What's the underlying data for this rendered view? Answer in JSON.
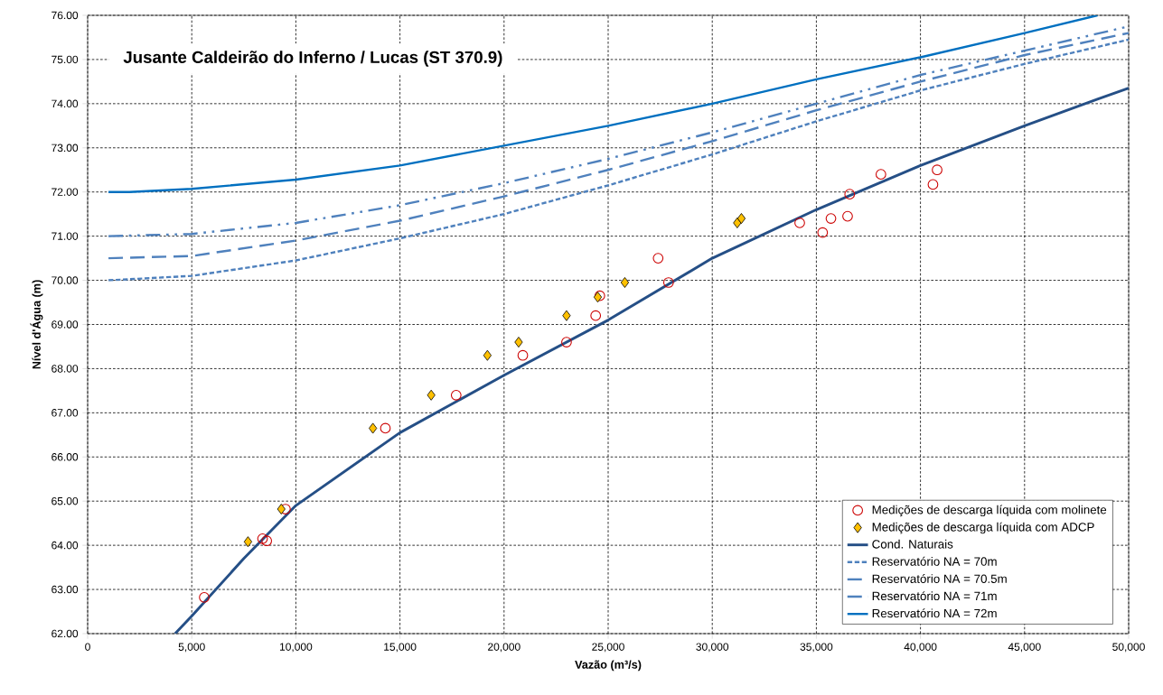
{
  "chart_data": {
    "type": "line",
    "title": "Jusante Caldeirão do Inferno / Lucas (ST 370.9)",
    "xlabel": "Vazão (m³/s)",
    "ylabel": "Nível d'Água (m)",
    "xlim": [
      0,
      50000
    ],
    "ylim": [
      62,
      76
    ],
    "xticks": [
      0,
      {
        "value": 5000,
        "label": "5,000"
      },
      {
        "value": 10000,
        "label": "10,000"
      },
      {
        "value": 15000,
        "label": "15,000"
      },
      {
        "value": 20000,
        "label": "20,000"
      },
      {
        "value": 25000,
        "label": "25,000"
      },
      {
        "value": 30000,
        "label": "30,000"
      },
      {
        "value": 35000,
        "label": "35,000"
      },
      {
        "value": 40000,
        "label": "40,000"
      },
      {
        "value": 45000,
        "label": "45,000"
      },
      {
        "value": 50000,
        "label": "50,000"
      }
    ],
    "yticks": [
      {
        "value": 62,
        "label": "62.00"
      },
      {
        "value": 63,
        "label": "63.00"
      },
      {
        "value": 64,
        "label": "64.00"
      },
      {
        "value": 65,
        "label": "65.00"
      },
      {
        "value": 66,
        "label": "66.00"
      },
      {
        "value": 67,
        "label": "67.00"
      },
      {
        "value": 68,
        "label": "68.00"
      },
      {
        "value": 69,
        "label": "69.00"
      },
      {
        "value": 70,
        "label": "70.00"
      },
      {
        "value": 71,
        "label": "71.00"
      },
      {
        "value": 72,
        "label": "72.00"
      },
      {
        "value": 73,
        "label": "73.00"
      },
      {
        "value": 74,
        "label": "74.00"
      },
      {
        "value": 75,
        "label": "75.00"
      },
      {
        "value": 76,
        "label": "76.00"
      }
    ],
    "grid": true,
    "legend": "bottom right",
    "series": [
      {
        "name": "Medições de descarga líquida com molinete",
        "type": "scatter",
        "marker": "circle",
        "color": "#cc0000",
        "x": [
          5600,
          8400,
          8600,
          9500,
          14300,
          17700,
          20900,
          23000,
          24400,
          24600,
          27400,
          27900,
          34200,
          35300,
          35700,
          36500,
          36600,
          38100,
          40600,
          40800
        ],
        "values": [
          62.82,
          64.15,
          64.1,
          64.82,
          66.65,
          67.4,
          68.3,
          68.6,
          69.2,
          69.65,
          70.5,
          69.95,
          71.3,
          71.08,
          71.4,
          71.45,
          71.95,
          72.4,
          72.17,
          72.5
        ]
      },
      {
        "name": "Medições de descarga líquida com ADCP",
        "type": "scatter",
        "marker": "diamond",
        "color": "#ffc000",
        "x": [
          7700,
          9300,
          13700,
          16500,
          19200,
          20700,
          23000,
          24500,
          25800,
          31200,
          31400
        ],
        "values": [
          64.08,
          64.82,
          66.65,
          67.4,
          68.3,
          68.6,
          69.2,
          69.62,
          69.95,
          71.3,
          71.4
        ]
      },
      {
        "name": "Cond. Naturais",
        "line_style": "solid",
        "color": "#254f86",
        "x": [
          4200,
          5000,
          7500,
          10000,
          15000,
          20000,
          25000,
          30000,
          35000,
          40000,
          45000,
          48500,
          50000
        ],
        "values": [
          62,
          62.4,
          63.7,
          64.9,
          66.55,
          67.85,
          69.1,
          70.5,
          71.6,
          72.6,
          73.5,
          74.1,
          74.35
        ]
      },
      {
        "name": "Reservatório NA = 70m",
        "line_style": "dashed",
        "color": "#4f81bd",
        "x": [
          1000,
          5000,
          10000,
          15000,
          20000,
          25000,
          30000,
          35000,
          40000,
          45000,
          50000
        ],
        "values": [
          70,
          70.1,
          70.45,
          70.95,
          71.5,
          72.15,
          72.85,
          73.6,
          74.3,
          74.9,
          75.45
        ]
      },
      {
        "name": "Reservatório NA = 70.5m",
        "line_style": "longdash",
        "color": "#4f81bd",
        "x": [
          1000,
          5000,
          10000,
          15000,
          20000,
          25000,
          30000,
          35000,
          40000,
          45000,
          50000
        ],
        "values": [
          70.5,
          70.55,
          70.9,
          71.35,
          71.9,
          72.5,
          73.15,
          73.85,
          74.5,
          75.1,
          75.6
        ]
      },
      {
        "name": "Reservatório NA = 71m",
        "line_style": "dashdotdot",
        "color": "#4f81bd",
        "x": [
          1000,
          5000,
          10000,
          15000,
          20000,
          25000,
          30000,
          35000,
          40000,
          45000,
          50000
        ],
        "values": [
          71,
          71.05,
          71.3,
          71.7,
          72.2,
          72.75,
          73.35,
          74.0,
          74.65,
          75.2,
          75.75
        ]
      },
      {
        "name": "Reservatório NA = 72m",
        "line_style": "solid",
        "color": "#0070c0",
        "x": [
          1000,
          2000,
          5000,
          10000,
          15000,
          20000,
          25000,
          30000,
          35000,
          40000,
          45000,
          48500
        ],
        "values": [
          72,
          72,
          72.07,
          72.28,
          72.6,
          73.05,
          73.5,
          74.0,
          74.55,
          75.05,
          75.6,
          76
        ]
      }
    ]
  }
}
